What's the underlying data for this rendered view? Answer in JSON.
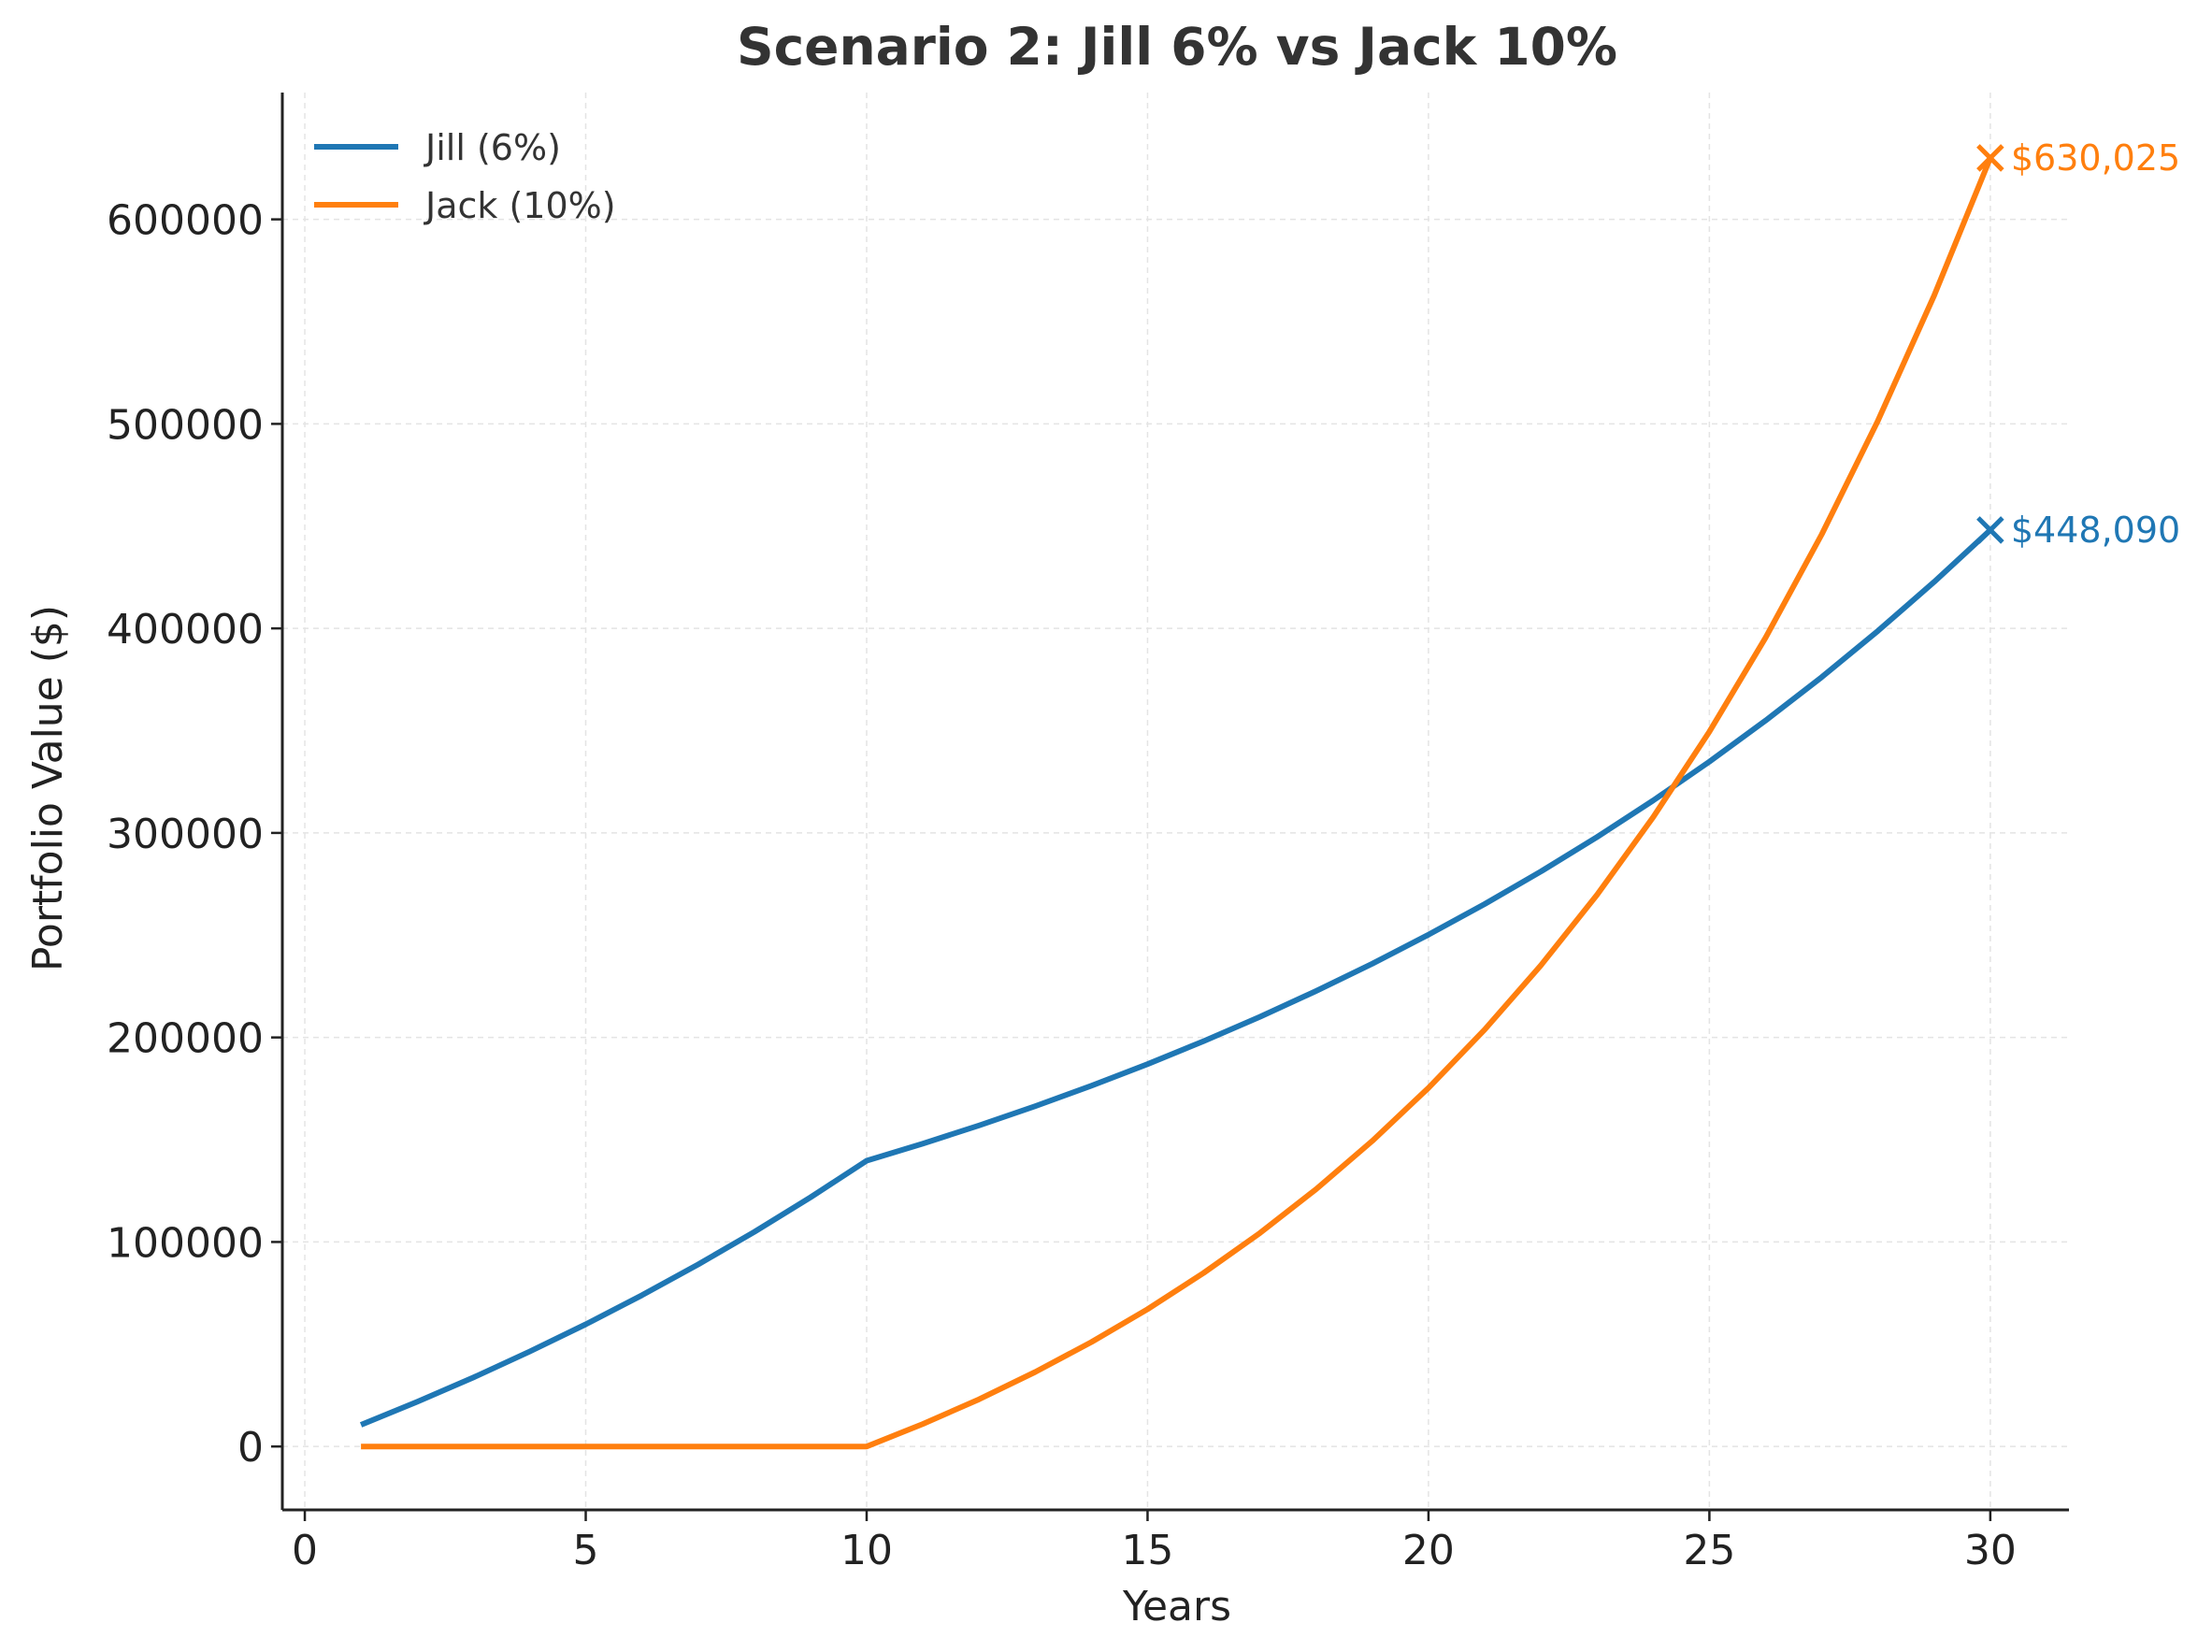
{
  "chart_data": {
    "type": "line",
    "title": "Scenario 2: Jill 6% vs Jack 10%",
    "xlabel": "Years",
    "ylabel": "Portfolio Value ($)",
    "xlim": [
      -0.4,
      31.4
    ],
    "ylim": [
      -31000,
      662000
    ],
    "xticks": [
      0,
      5,
      10,
      15,
      20,
      25,
      30
    ],
    "yticks": [
      0,
      100000,
      200000,
      300000,
      400000,
      500000,
      600000
    ],
    "grid": true,
    "legend_position": "top-left",
    "x": [
      1,
      2,
      3,
      4,
      5,
      6,
      7,
      8,
      9,
      10,
      11,
      12,
      13,
      14,
      15,
      16,
      17,
      18,
      19,
      20,
      21,
      22,
      23,
      24,
      25,
      26,
      27,
      28,
      29,
      30
    ],
    "series": [
      {
        "name": "Jill (6%)",
        "color": "#1f77b4",
        "values": [
          10600,
          21836,
          33746,
          46371,
          59753,
          73938,
          88975,
          104913,
          121808,
          139716,
          148099,
          156985,
          166404,
          176389,
          186972,
          198190,
          210082,
          222687,
          236048,
          250211,
          265223,
          281137,
          298005,
          315885,
          334838,
          354928,
          376224,
          398797,
          422725,
          448090
        ],
        "end_label": "$448,090"
      },
      {
        "name": "Jack (10%)",
        "color": "#ff7f0e",
        "values": [
          0,
          0,
          0,
          0,
          0,
          0,
          0,
          0,
          0,
          0,
          11000,
          23100,
          36410,
          51051,
          67156,
          84872,
          104359,
          125795,
          149374,
          175312,
          203843,
          235227,
          269750,
          307725,
          349497,
          395447,
          445992,
          501591,
          562750,
          630025
        ],
        "end_label": "$630,025"
      }
    ]
  }
}
